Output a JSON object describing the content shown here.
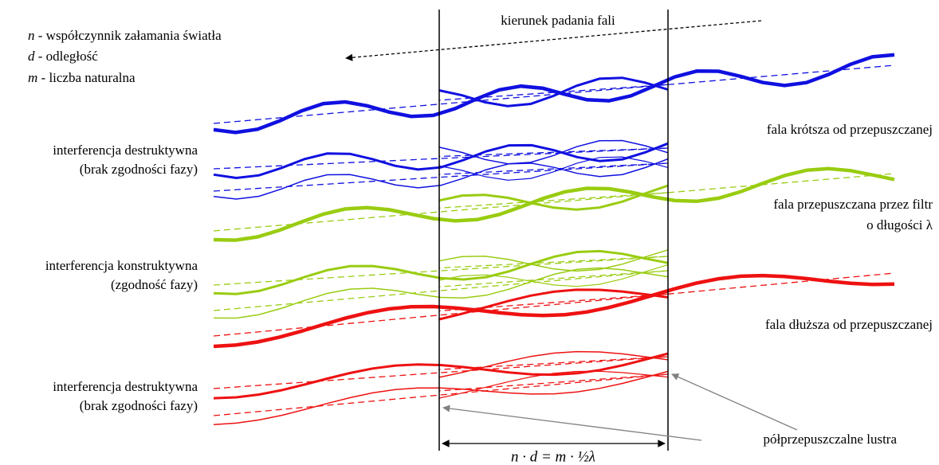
{
  "legend": [
    {
      "symbol": "n",
      "text": " - współczynnik załamania światła"
    },
    {
      "symbol": "d",
      "text": " - odległość"
    },
    {
      "symbol": "m",
      "text": " - liczba naturalna"
    }
  ],
  "direction_label": "kierunek padania fali",
  "groups": [
    {
      "wave_label": [
        "fala krótsza od  przepuszczanej"
      ],
      "interference_label": [
        "interferencja destruktywna",
        "(brak zgodności fazy)"
      ]
    },
    {
      "wave_label": [
        "fala przepuszczana przez filtr",
        "o długości λ"
      ],
      "interference_label": [
        "interferencja konstruktywna",
        "(zgodność fazy)"
      ]
    },
    {
      "wave_label": [
        "fala dłuższa od  przepuszczanej"
      ],
      "interference_label": [
        "interferencja destruktywna",
        "(brak zgodności fazy)"
      ]
    }
  ],
  "mirrors_label": "półprzepuszczalne lustra",
  "formula": "n · d = m · ½λ"
}
